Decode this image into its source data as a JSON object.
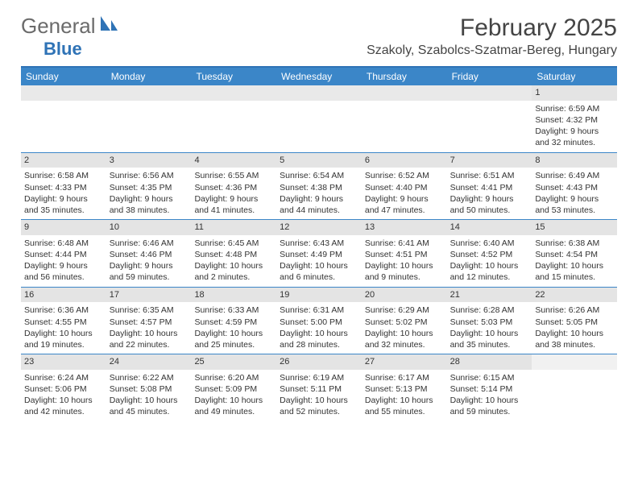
{
  "logo": {
    "general": "General",
    "blue": "Blue"
  },
  "title": "February 2025",
  "location": "Szakoly, Szabolcs-Szatmar-Bereg, Hungary",
  "colors": {
    "header_bar": "#3b86c8",
    "top_border": "#2f73b6",
    "day_number_bg": "#e4e4e4",
    "row_divider": "#3b86c8",
    "text": "#333333",
    "logo_gray": "#6b6b6b",
    "logo_blue": "#2f73b6"
  },
  "day_headers": [
    "Sunday",
    "Monday",
    "Tuesday",
    "Wednesday",
    "Thursday",
    "Friday",
    "Saturday"
  ],
  "weeks": [
    [
      {
        "empty": true
      },
      {
        "empty": true
      },
      {
        "empty": true
      },
      {
        "empty": true
      },
      {
        "empty": true
      },
      {
        "empty": true
      },
      {
        "day": "1",
        "sunrise": "Sunrise: 6:59 AM",
        "sunset": "Sunset: 4:32 PM",
        "daylight1": "Daylight: 9 hours",
        "daylight2": "and 32 minutes."
      }
    ],
    [
      {
        "day": "2",
        "sunrise": "Sunrise: 6:58 AM",
        "sunset": "Sunset: 4:33 PM",
        "daylight1": "Daylight: 9 hours",
        "daylight2": "and 35 minutes."
      },
      {
        "day": "3",
        "sunrise": "Sunrise: 6:56 AM",
        "sunset": "Sunset: 4:35 PM",
        "daylight1": "Daylight: 9 hours",
        "daylight2": "and 38 minutes."
      },
      {
        "day": "4",
        "sunrise": "Sunrise: 6:55 AM",
        "sunset": "Sunset: 4:36 PM",
        "daylight1": "Daylight: 9 hours",
        "daylight2": "and 41 minutes."
      },
      {
        "day": "5",
        "sunrise": "Sunrise: 6:54 AM",
        "sunset": "Sunset: 4:38 PM",
        "daylight1": "Daylight: 9 hours",
        "daylight2": "and 44 minutes."
      },
      {
        "day": "6",
        "sunrise": "Sunrise: 6:52 AM",
        "sunset": "Sunset: 4:40 PM",
        "daylight1": "Daylight: 9 hours",
        "daylight2": "and 47 minutes."
      },
      {
        "day": "7",
        "sunrise": "Sunrise: 6:51 AM",
        "sunset": "Sunset: 4:41 PM",
        "daylight1": "Daylight: 9 hours",
        "daylight2": "and 50 minutes."
      },
      {
        "day": "8",
        "sunrise": "Sunrise: 6:49 AM",
        "sunset": "Sunset: 4:43 PM",
        "daylight1": "Daylight: 9 hours",
        "daylight2": "and 53 minutes."
      }
    ],
    [
      {
        "day": "9",
        "sunrise": "Sunrise: 6:48 AM",
        "sunset": "Sunset: 4:44 PM",
        "daylight1": "Daylight: 9 hours",
        "daylight2": "and 56 minutes."
      },
      {
        "day": "10",
        "sunrise": "Sunrise: 6:46 AM",
        "sunset": "Sunset: 4:46 PM",
        "daylight1": "Daylight: 9 hours",
        "daylight2": "and 59 minutes."
      },
      {
        "day": "11",
        "sunrise": "Sunrise: 6:45 AM",
        "sunset": "Sunset: 4:48 PM",
        "daylight1": "Daylight: 10 hours",
        "daylight2": "and 2 minutes."
      },
      {
        "day": "12",
        "sunrise": "Sunrise: 6:43 AM",
        "sunset": "Sunset: 4:49 PM",
        "daylight1": "Daylight: 10 hours",
        "daylight2": "and 6 minutes."
      },
      {
        "day": "13",
        "sunrise": "Sunrise: 6:41 AM",
        "sunset": "Sunset: 4:51 PM",
        "daylight1": "Daylight: 10 hours",
        "daylight2": "and 9 minutes."
      },
      {
        "day": "14",
        "sunrise": "Sunrise: 6:40 AM",
        "sunset": "Sunset: 4:52 PM",
        "daylight1": "Daylight: 10 hours",
        "daylight2": "and 12 minutes."
      },
      {
        "day": "15",
        "sunrise": "Sunrise: 6:38 AM",
        "sunset": "Sunset: 4:54 PM",
        "daylight1": "Daylight: 10 hours",
        "daylight2": "and 15 minutes."
      }
    ],
    [
      {
        "day": "16",
        "sunrise": "Sunrise: 6:36 AM",
        "sunset": "Sunset: 4:55 PM",
        "daylight1": "Daylight: 10 hours",
        "daylight2": "and 19 minutes."
      },
      {
        "day": "17",
        "sunrise": "Sunrise: 6:35 AM",
        "sunset": "Sunset: 4:57 PM",
        "daylight1": "Daylight: 10 hours",
        "daylight2": "and 22 minutes."
      },
      {
        "day": "18",
        "sunrise": "Sunrise: 6:33 AM",
        "sunset": "Sunset: 4:59 PM",
        "daylight1": "Daylight: 10 hours",
        "daylight2": "and 25 minutes."
      },
      {
        "day": "19",
        "sunrise": "Sunrise: 6:31 AM",
        "sunset": "Sunset: 5:00 PM",
        "daylight1": "Daylight: 10 hours",
        "daylight2": "and 28 minutes."
      },
      {
        "day": "20",
        "sunrise": "Sunrise: 6:29 AM",
        "sunset": "Sunset: 5:02 PM",
        "daylight1": "Daylight: 10 hours",
        "daylight2": "and 32 minutes."
      },
      {
        "day": "21",
        "sunrise": "Sunrise: 6:28 AM",
        "sunset": "Sunset: 5:03 PM",
        "daylight1": "Daylight: 10 hours",
        "daylight2": "and 35 minutes."
      },
      {
        "day": "22",
        "sunrise": "Sunrise: 6:26 AM",
        "sunset": "Sunset: 5:05 PM",
        "daylight1": "Daylight: 10 hours",
        "daylight2": "and 38 minutes."
      }
    ],
    [
      {
        "day": "23",
        "sunrise": "Sunrise: 6:24 AM",
        "sunset": "Sunset: 5:06 PM",
        "daylight1": "Daylight: 10 hours",
        "daylight2": "and 42 minutes."
      },
      {
        "day": "24",
        "sunrise": "Sunrise: 6:22 AM",
        "sunset": "Sunset: 5:08 PM",
        "daylight1": "Daylight: 10 hours",
        "daylight2": "and 45 minutes."
      },
      {
        "day": "25",
        "sunrise": "Sunrise: 6:20 AM",
        "sunset": "Sunset: 5:09 PM",
        "daylight1": "Daylight: 10 hours",
        "daylight2": "and 49 minutes."
      },
      {
        "day": "26",
        "sunrise": "Sunrise: 6:19 AM",
        "sunset": "Sunset: 5:11 PM",
        "daylight1": "Daylight: 10 hours",
        "daylight2": "and 52 minutes."
      },
      {
        "day": "27",
        "sunrise": "Sunrise: 6:17 AM",
        "sunset": "Sunset: 5:13 PM",
        "daylight1": "Daylight: 10 hours",
        "daylight2": "and 55 minutes."
      },
      {
        "day": "28",
        "sunrise": "Sunrise: 6:15 AM",
        "sunset": "Sunset: 5:14 PM",
        "daylight1": "Daylight: 10 hours",
        "daylight2": "and 59 minutes."
      },
      {
        "empty": true
      }
    ]
  ]
}
